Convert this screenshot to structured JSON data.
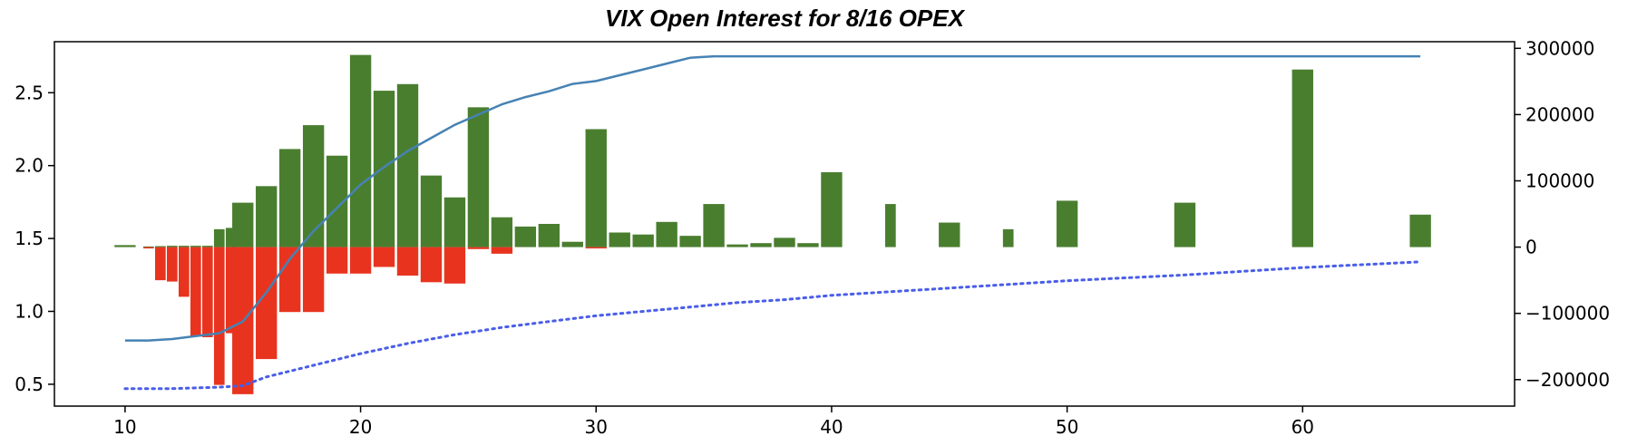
{
  "chart_data": {
    "type": "bar",
    "title": "VIX Open Interest for 8/16 OPEX",
    "xlabel": "",
    "ylabel": "",
    "xlim": [
      7,
      69
    ],
    "ylim_left": [
      0.35,
      2.85
    ],
    "ylim_right": [
      -240000,
      310000
    ],
    "x_ticks": [
      10,
      20,
      30,
      40,
      50,
      60
    ],
    "y_left_ticks": [
      "0.5",
      "1.0",
      "1.5",
      "2.0",
      "2.5"
    ],
    "y_left_tick_values": [
      0.5,
      1.0,
      1.5,
      2.0,
      2.5
    ],
    "y_right_ticks": [
      "−200000",
      "−100000",
      "0",
      "100000",
      "200000",
      "300000"
    ],
    "y_right_tick_values": [
      -200000,
      -100000,
      0,
      100000,
      200000,
      300000
    ],
    "grid": false,
    "legend": "none",
    "colors": {
      "calls": "#4a7e2f",
      "puts": "#e8341f",
      "cumulative": "#4682b4",
      "dotted": "#4a5ee8"
    },
    "series": [
      {
        "kind": "bar",
        "axis": "right",
        "strikes": [
          10,
          11,
          11.5,
          12,
          12.5,
          13,
          13.5,
          14,
          14.5,
          15,
          16,
          17,
          18,
          19,
          20,
          21,
          22,
          23,
          24,
          25,
          26,
          27,
          28,
          29,
          30,
          31,
          32,
          33,
          34,
          35,
          36,
          37,
          38,
          39,
          40,
          42.5,
          45,
          47.5,
          50,
          55,
          60,
          65
        ],
        "call_values": [
          3000,
          1000,
          1500,
          2000,
          2000,
          2000,
          2000,
          27000,
          29000,
          67000,
          92000,
          148000,
          184000,
          138000,
          290000,
          236000,
          246000,
          108000,
          75000,
          211000,
          45000,
          31000,
          35000,
          8000,
          178000,
          22000,
          19000,
          38000,
          17000,
          65000,
          4000,
          6000,
          14000,
          6000,
          113000,
          65000,
          37000,
          27000,
          70000,
          67000,
          268000,
          49000
        ],
        "put_values": [
          0,
          -2000,
          -50000,
          -52000,
          -75000,
          -135000,
          -136000,
          -208000,
          -130000,
          -222000,
          -169000,
          -98000,
          -98000,
          -40000,
          -40000,
          -30000,
          -43000,
          -53000,
          -55000,
          -3000,
          -10000,
          0,
          0,
          0,
          -2000,
          0,
          0,
          0,
          0,
          0,
          0,
          0,
          0,
          0,
          0,
          0,
          0,
          0,
          0,
          0,
          0,
          0
        ]
      },
      {
        "kind": "line",
        "style": "solid",
        "axis": "left",
        "x": [
          10,
          11,
          12,
          13,
          14,
          15,
          16,
          17,
          18,
          19,
          20,
          21,
          22,
          23,
          24,
          25,
          26,
          27,
          28,
          29,
          30,
          31,
          32,
          33,
          34,
          35,
          36,
          40,
          50,
          60,
          65
        ],
        "y": [
          0.8,
          0.8,
          0.81,
          0.83,
          0.85,
          0.93,
          1.13,
          1.36,
          1.55,
          1.71,
          1.87,
          1.99,
          2.1,
          2.19,
          2.28,
          2.35,
          2.42,
          2.47,
          2.51,
          2.56,
          2.58,
          2.62,
          2.66,
          2.7,
          2.74,
          2.75,
          2.75,
          2.75,
          2.75,
          2.75,
          2.75
        ]
      },
      {
        "kind": "line",
        "style": "dotted",
        "axis": "left",
        "x": [
          10,
          12,
          14,
          15,
          16,
          18,
          20,
          22,
          24,
          26,
          28,
          30,
          32,
          34,
          36,
          38,
          40,
          45,
          50,
          55,
          60,
          65
        ],
        "y": [
          0.47,
          0.47,
          0.48,
          0.49,
          0.55,
          0.63,
          0.71,
          0.78,
          0.84,
          0.89,
          0.93,
          0.97,
          1.0,
          1.03,
          1.06,
          1.08,
          1.11,
          1.16,
          1.21,
          1.25,
          1.3,
          1.34
        ]
      }
    ]
  }
}
